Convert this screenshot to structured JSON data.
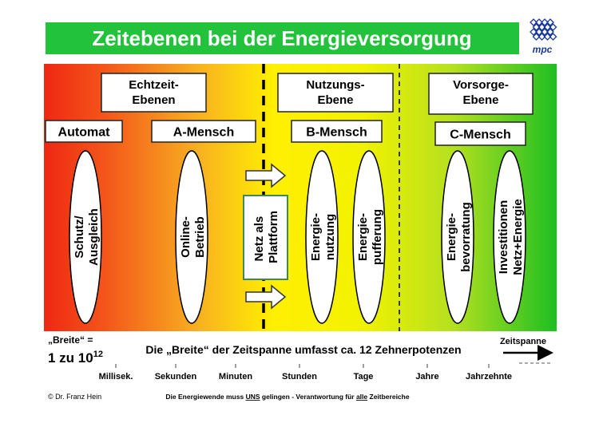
{
  "header": {
    "title": "Zeitebenen bei der Energieversorgung",
    "logo": "mpc"
  },
  "levels": [
    [
      "Echtzeit-",
      "Ebenen"
    ],
    [
      "Nutzungs-",
      "Ebene"
    ],
    [
      "Vorsorge-",
      "Ebene"
    ]
  ],
  "actors": [
    "Automat",
    "A-Mensch",
    "B-Mensch",
    "C-Mensch"
  ],
  "ovals": [
    [
      "Schutz/",
      "Ausgleich"
    ],
    [
      "Online-",
      "Betrieb"
    ],
    [
      "Energie-",
      "nutzung"
    ],
    [
      "Energie-",
      "pufferung"
    ],
    [
      "Energie-",
      "bevorratung"
    ],
    [
      "Investitionen",
      "Netz+Energie"
    ]
  ],
  "platform": [
    "Netz als",
    "Plattform"
  ],
  "scale": {
    "width_label": "„Breite“ =",
    "ratio": "1 zu 10",
    "exponent": "12",
    "caption": "Die „Breite“ der Zeitspanne umfasst ca. 12 Zehnerpotenzen",
    "axis_label": "Zeitspanne",
    "ticks": [
      "Millisek.",
      "Sekunden",
      "Minuten",
      "Stunden",
      "Tage",
      "Jahre",
      "Jahrzehnte"
    ]
  },
  "footer": {
    "author": "© Dr. Franz Hein",
    "slogan": [
      "Die Energiewende muss ",
      "UNS",
      " gelingen - Verantwortung für ",
      "alle",
      " Zeitbereiche"
    ]
  }
}
